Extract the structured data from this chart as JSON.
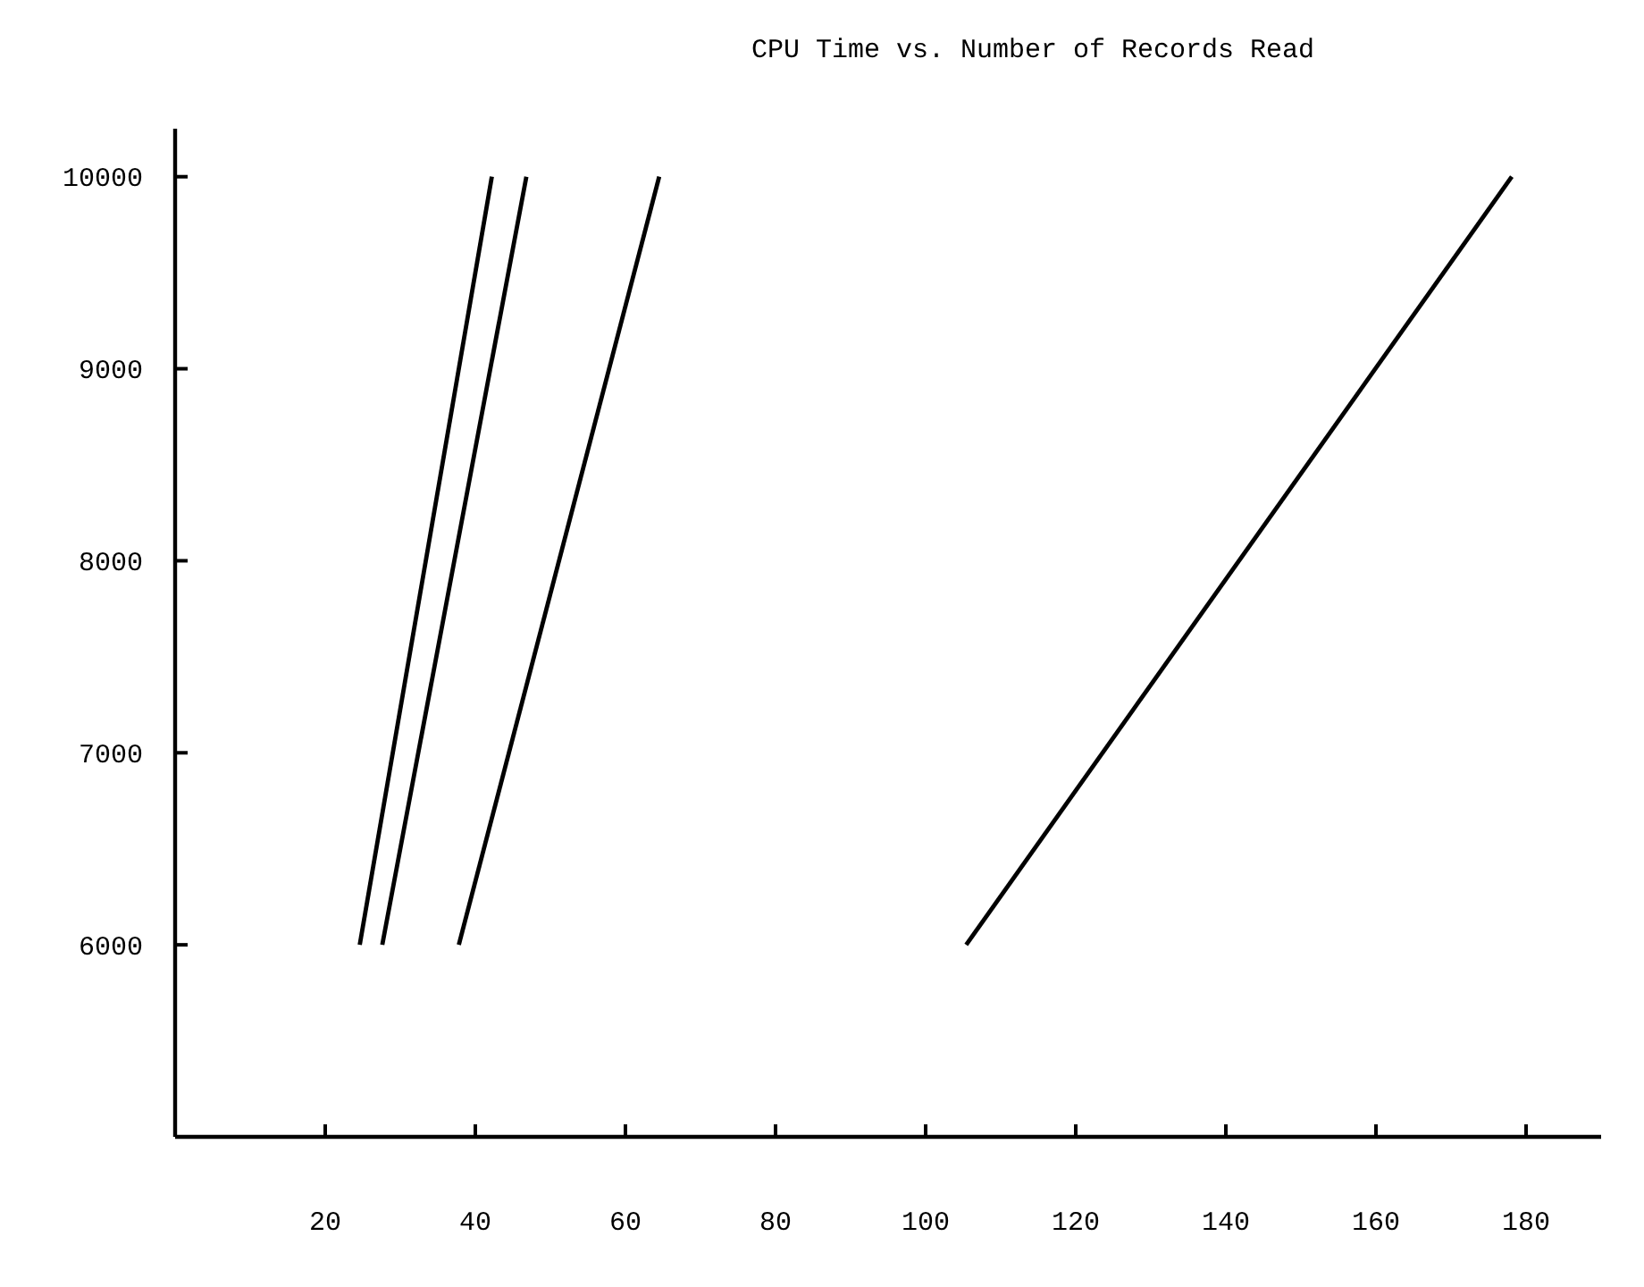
{
  "chart_data": {
    "type": "line",
    "title": "CPU Time vs. Number of Records Read",
    "series": [
      {
        "color": "#000000",
        "x": [
          24.6,
          42.2
        ],
        "values": [
          6000,
          10000
        ]
      },
      {
        "color": "#000000",
        "x": [
          27.6,
          46.8
        ],
        "values": [
          6000,
          10000
        ]
      },
      {
        "color": "#000000",
        "x": [
          37.8,
          64.5
        ],
        "values": [
          6000,
          10000
        ]
      },
      {
        "color": "#000000",
        "x": [
          105.4,
          178.1
        ],
        "values": [
          6000,
          10000
        ]
      }
    ],
    "xlim": [
      0,
      190
    ],
    "xticks": [
      20,
      40,
      60,
      80,
      100,
      120,
      140,
      160,
      180
    ],
    "ylim": [
      5000,
      10250
    ],
    "yticks": [
      6000,
      7000,
      8000,
      9000,
      10000
    ],
    "grid": false,
    "marker": "none",
    "line_style": "solid"
  }
}
